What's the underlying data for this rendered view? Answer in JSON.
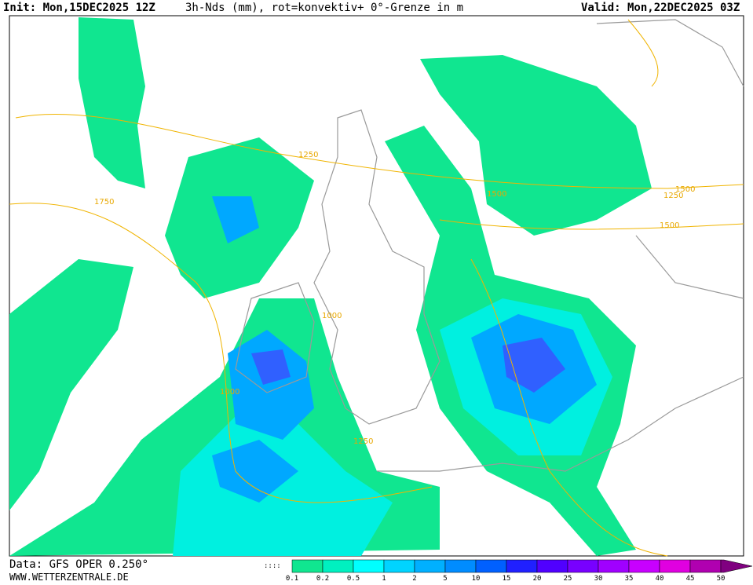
{
  "header": {
    "init": "Init: Mon,15DEC2025 12Z",
    "title": "3h-Nds (mm), rot=konvektiv+ 0°-Grenze in m",
    "valid": "Valid: Mon,22DEC2025 03Z"
  },
  "footer": {
    "data": "Data: GFS OPER 0.250°",
    "site": "WWW.WETTERZENTRALE.DE"
  },
  "colorbar": {
    "labels": [
      0.1,
      0.2,
      0.5,
      1,
      2,
      5,
      10,
      15,
      20,
      25,
      30,
      35,
      40,
      45,
      50
    ],
    "colors": [
      "#10e690",
      "#00f0c0",
      "#00ffff",
      "#00d4ff",
      "#00b0ff",
      "#008cff",
      "#0060ff",
      "#2020ff",
      "#5000ff",
      "#7800ff",
      "#a000ff",
      "#c800ff",
      "#e000e0",
      "#b000b0",
      "#800080"
    ]
  },
  "contours": [
    {
      "label": "1250"
    },
    {
      "label": "1750"
    },
    {
      "label": "1500"
    },
    {
      "label": "1000"
    },
    {
      "label": "1500"
    },
    {
      "label": "1250"
    },
    {
      "label": "1000"
    },
    {
      "label": "1250"
    },
    {
      "label": "1500"
    }
  ]
}
